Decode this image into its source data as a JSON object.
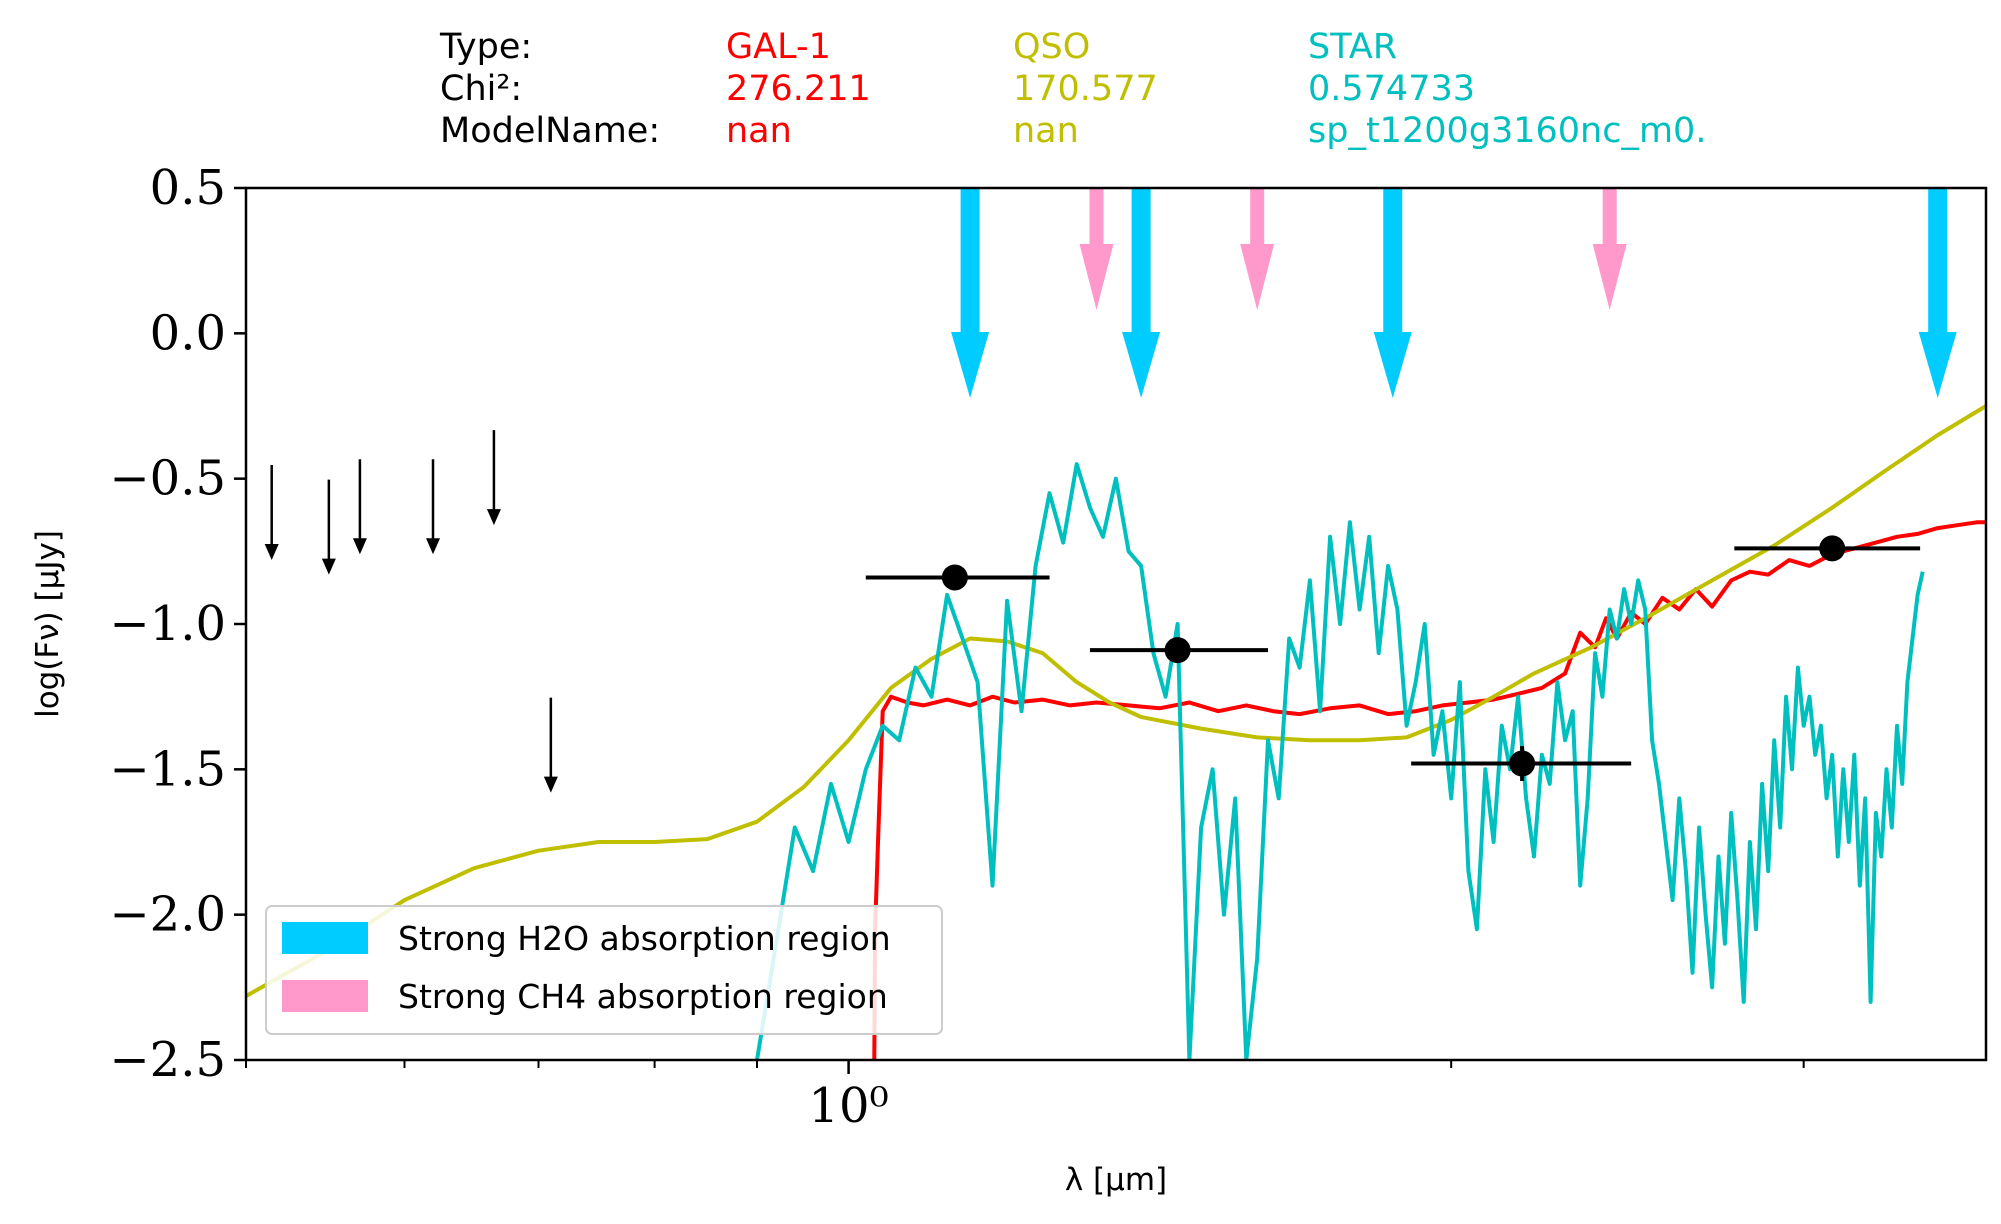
{
  "header": {
    "row_labels": [
      "Type:",
      "Chi²:",
      "ModelName:"
    ],
    "columns": [
      {
        "name": "GAL-1",
        "chi2": "276.211",
        "model": "nan",
        "color": "#ff0000"
      },
      {
        "name": "QSO",
        "chi2": "170.577",
        "model": "nan",
        "color": "#bfbf00"
      },
      {
        "name": "STAR",
        "chi2": "0.574733",
        "model": "sp_t1200g3160nc_m0.",
        "color": "#00bfbf"
      }
    ]
  },
  "chart_data": {
    "type": "line",
    "xlabel": "λ [μm]",
    "ylabel": "log(Fν) [μJy]",
    "xscale": "log",
    "xlim": [
      0.5,
      3.7
    ],
    "ylim": [
      -2.5,
      0.5
    ],
    "yticks": [
      "0.5",
      "0.0",
      "−0.5",
      "−1.0",
      "−1.5",
      "−2.0",
      "−2.5"
    ],
    "ytick_values": [
      0.5,
      0.0,
      -0.5,
      -1.0,
      -1.5,
      -2.0,
      -2.5
    ],
    "xticks_major": [
      {
        "value": 1.0,
        "label": "10⁰"
      }
    ],
    "grid": false,
    "legend_position": "lower-left",
    "legend": [
      {
        "label": "Strong H2O absorption region",
        "color": "#00ccff"
      },
      {
        "label": "Strong CH4 absorption region",
        "color": "#ff99cc"
      }
    ],
    "h2o_arrows_x": [
      1.15,
      1.4,
      1.87,
      3.5
    ],
    "ch4_arrows_x": [
      1.33,
      1.6,
      2.4
    ],
    "upper_limits": [
      {
        "x": 0.515,
        "y": -0.7
      },
      {
        "x": 0.55,
        "y": -0.75
      },
      {
        "x": 0.57,
        "y": -0.68
      },
      {
        "x": 0.62,
        "y": -0.68
      },
      {
        "x": 0.665,
        "y": -0.58
      },
      {
        "x": 0.71,
        "y": -1.5
      }
    ],
    "photometry": [
      {
        "x": 1.13,
        "y": -0.84,
        "xerr": [
          1.02,
          1.26
        ],
        "yerr": 0
      },
      {
        "x": 1.46,
        "y": -1.09,
        "xerr": [
          1.32,
          1.62
        ],
        "yerr": 0
      },
      {
        "x": 2.17,
        "y": -1.48,
        "xerr": [
          1.91,
          2.46
        ],
        "yerr": 0.06
      },
      {
        "x": 3.1,
        "y": -0.74,
        "xerr": [
          2.77,
          3.43
        ],
        "yerr": 0
      }
    ],
    "series": [
      {
        "name": "GAL-1",
        "color": "#ff0000",
        "x": [
          1.03,
          1.031,
          1.035,
          1.04,
          1.05,
          1.07,
          1.09,
          1.12,
          1.15,
          1.18,
          1.21,
          1.25,
          1.29,
          1.33,
          1.38,
          1.43,
          1.48,
          1.53,
          1.58,
          1.63,
          1.68,
          1.74,
          1.8,
          1.86,
          1.92,
          1.98,
          2.04,
          2.1,
          2.16,
          2.22,
          2.28,
          2.32,
          2.36,
          2.39,
          2.42,
          2.46,
          2.5,
          2.55,
          2.6,
          2.65,
          2.7,
          2.76,
          2.82,
          2.88,
          2.95,
          3.02,
          3.1,
          3.18,
          3.26,
          3.34,
          3.42,
          3.5,
          3.58,
          3.66,
          3.7
        ],
        "y": [
          -2.5,
          -2.05,
          -1.7,
          -1.3,
          -1.25,
          -1.27,
          -1.28,
          -1.26,
          -1.28,
          -1.25,
          -1.27,
          -1.26,
          -1.28,
          -1.27,
          -1.28,
          -1.29,
          -1.27,
          -1.3,
          -1.28,
          -1.3,
          -1.31,
          -1.29,
          -1.28,
          -1.31,
          -1.3,
          -1.28,
          -1.27,
          -1.26,
          -1.24,
          -1.22,
          -1.17,
          -1.03,
          -1.08,
          -0.98,
          -1.05,
          -0.96,
          -1.0,
          -0.91,
          -0.95,
          -0.88,
          -0.94,
          -0.85,
          -0.82,
          -0.83,
          -0.78,
          -0.8,
          -0.76,
          -0.74,
          -0.72,
          -0.7,
          -0.69,
          -0.67,
          -0.66,
          -0.65,
          -0.65
        ]
      },
      {
        "name": "QSO",
        "color": "#bfbf00",
        "x": [
          0.5,
          0.55,
          0.6,
          0.65,
          0.7,
          0.75,
          0.8,
          0.85,
          0.9,
          0.95,
          1.0,
          1.05,
          1.1,
          1.15,
          1.2,
          1.25,
          1.3,
          1.35,
          1.4,
          1.5,
          1.6,
          1.7,
          1.8,
          1.9,
          2.0,
          2.1,
          2.2,
          2.35,
          2.5,
          2.7,
          2.9,
          3.1,
          3.3,
          3.5,
          3.7
        ],
        "y": [
          -2.28,
          -2.12,
          -1.95,
          -1.84,
          -1.78,
          -1.75,
          -1.75,
          -1.74,
          -1.68,
          -1.56,
          -1.4,
          -1.22,
          -1.12,
          -1.05,
          -1.06,
          -1.1,
          -1.2,
          -1.27,
          -1.32,
          -1.36,
          -1.39,
          -1.4,
          -1.4,
          -1.39,
          -1.33,
          -1.25,
          -1.17,
          -1.08,
          -0.98,
          -0.85,
          -0.73,
          -0.6,
          -0.47,
          -0.35,
          -0.25
        ]
      },
      {
        "name": "STAR",
        "color": "#00bfbf",
        "x": [
          0.9,
          0.92,
          0.94,
          0.96,
          0.98,
          1.0,
          1.02,
          1.04,
          1.06,
          1.08,
          1.1,
          1.12,
          1.14,
          1.16,
          1.18,
          1.2,
          1.22,
          1.24,
          1.26,
          1.28,
          1.3,
          1.32,
          1.34,
          1.36,
          1.38,
          1.4,
          1.42,
          1.44,
          1.46,
          1.48,
          1.5,
          1.52,
          1.54,
          1.56,
          1.58,
          1.6,
          1.62,
          1.64,
          1.66,
          1.68,
          1.7,
          1.72,
          1.74,
          1.76,
          1.78,
          1.8,
          1.82,
          1.84,
          1.86,
          1.88,
          1.9,
          1.92,
          1.94,
          1.96,
          1.98,
          2.0,
          2.02,
          2.04,
          2.06,
          2.08,
          2.1,
          2.12,
          2.14,
          2.16,
          2.18,
          2.2,
          2.22,
          2.24,
          2.26,
          2.28,
          2.3,
          2.32,
          2.34,
          2.36,
          2.38,
          2.4,
          2.42,
          2.44,
          2.46,
          2.48,
          2.5,
          2.52,
          2.54,
          2.56,
          2.58,
          2.6,
          2.62,
          2.64,
          2.66,
          2.68,
          2.7,
          2.72,
          2.74,
          2.76,
          2.78,
          2.8,
          2.82,
          2.84,
          2.86,
          2.88,
          2.9,
          2.92,
          2.94,
          2.96,
          2.98,
          3.0,
          3.02,
          3.04,
          3.06,
          3.08,
          3.1,
          3.12,
          3.14,
          3.16,
          3.18,
          3.2,
          3.22,
          3.24,
          3.26,
          3.28,
          3.3,
          3.32,
          3.34,
          3.36,
          3.38,
          3.4,
          3.42,
          3.44
        ],
        "y": [
          -2.5,
          -2.1,
          -1.7,
          -1.85,
          -1.55,
          -1.75,
          -1.5,
          -1.35,
          -1.4,
          -1.15,
          -1.25,
          -0.9,
          -1.05,
          -1.2,
          -1.9,
          -0.92,
          -1.3,
          -0.8,
          -0.55,
          -0.72,
          -0.45,
          -0.6,
          -0.7,
          -0.5,
          -0.75,
          -0.8,
          -1.1,
          -1.25,
          -1.0,
          -2.5,
          -1.7,
          -1.5,
          -2.0,
          -1.6,
          -2.5,
          -2.15,
          -1.4,
          -1.6,
          -1.05,
          -1.15,
          -0.85,
          -1.3,
          -0.7,
          -1.0,
          -0.65,
          -0.95,
          -0.7,
          -1.1,
          -0.8,
          -0.95,
          -1.35,
          -1.2,
          -1.0,
          -1.45,
          -1.3,
          -1.6,
          -1.2,
          -1.85,
          -2.05,
          -1.5,
          -1.75,
          -1.35,
          -1.5,
          -1.25,
          -1.6,
          -1.8,
          -1.45,
          -1.55,
          -1.2,
          -1.4,
          -1.3,
          -1.9,
          -1.6,
          -1.1,
          -1.25,
          -0.95,
          -1.05,
          -0.88,
          -1.0,
          -0.85,
          -0.95,
          -1.4,
          -1.55,
          -1.75,
          -1.95,
          -1.6,
          -1.85,
          -2.2,
          -1.7,
          -2.0,
          -2.25,
          -1.8,
          -2.1,
          -1.65,
          -1.95,
          -2.3,
          -1.75,
          -2.05,
          -1.55,
          -1.85,
          -1.4,
          -1.7,
          -1.25,
          -1.5,
          -1.15,
          -1.35,
          -1.25,
          -1.45,
          -1.35,
          -1.6,
          -1.45,
          -1.8,
          -1.5,
          -1.75,
          -1.45,
          -1.9,
          -1.6,
          -2.3,
          -1.65,
          -1.8,
          -1.5,
          -1.7,
          -1.35,
          -1.55,
          -1.2,
          -1.05,
          -0.9,
          -0.82
        ]
      }
    ]
  }
}
